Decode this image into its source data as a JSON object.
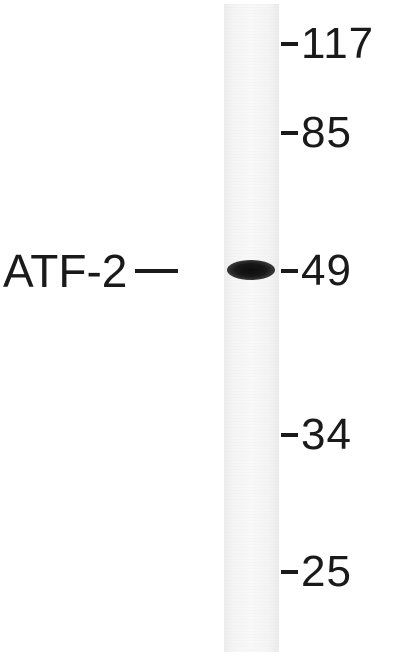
{
  "figure": {
    "protein_label": "ATF-2",
    "markers": [
      {
        "label": "117"
      },
      {
        "label": "85"
      },
      {
        "label": "49"
      },
      {
        "label": "34"
      },
      {
        "label": "25"
      }
    ]
  }
}
